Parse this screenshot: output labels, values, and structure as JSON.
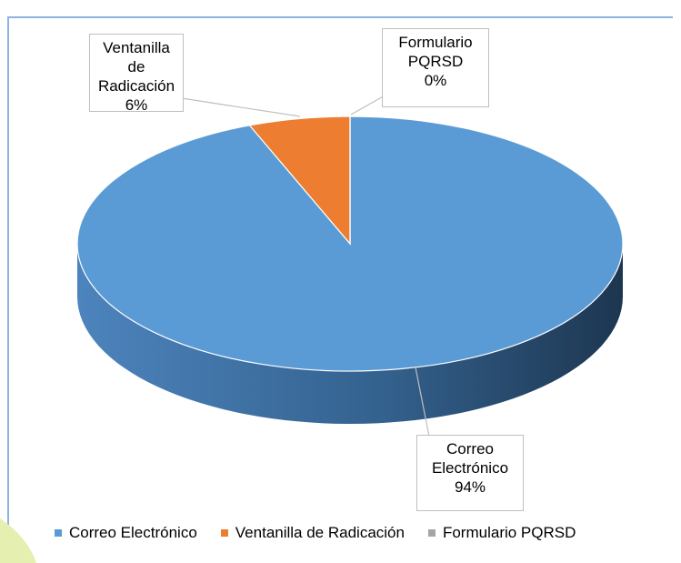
{
  "chart_data": {
    "type": "pie",
    "categories": [
      "Correo Electrónico",
      "Ventanilla de Radicación",
      "Formulario PQRSD"
    ],
    "values": [
      94,
      6,
      0
    ],
    "value_labels": [
      "94%",
      "6%",
      "0%"
    ],
    "colors": [
      "#5b9bd5",
      "#ed7d31",
      "#a5a5a5"
    ],
    "legend": "bottom"
  }
}
